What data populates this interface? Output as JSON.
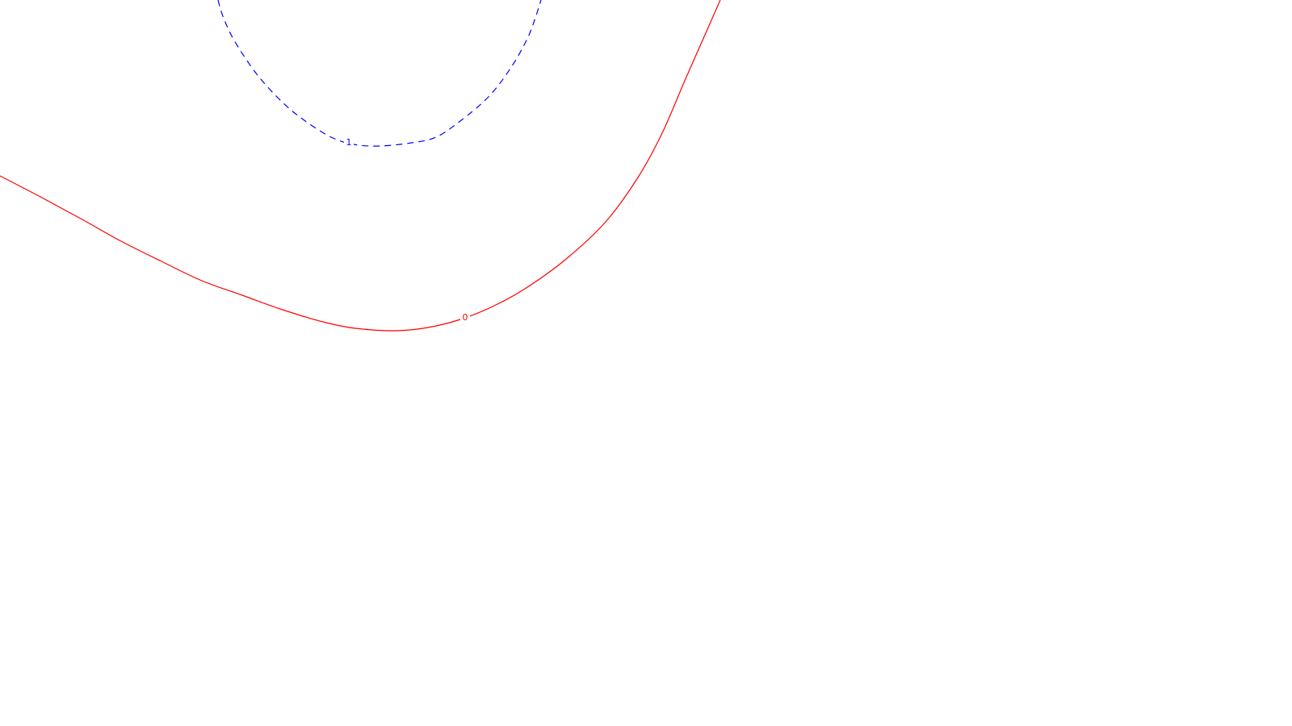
{
  "chart_data": {
    "type": "contour",
    "title": "",
    "xlabel": "",
    "ylabel": "",
    "grid": false,
    "legend": "none",
    "contours": [
      {
        "level_label": "1",
        "color": "#0000ff",
        "dash": "dashed",
        "label_point": [
          432,
          177
        ],
        "points": [
          [
            270,
            0
          ],
          [
            276,
            20
          ],
          [
            290,
            50
          ],
          [
            318,
            92
          ],
          [
            350,
            127
          ],
          [
            378,
            150
          ],
          [
            410,
            170
          ],
          [
            438,
            179
          ],
          [
            470,
            181
          ],
          [
            510,
            177
          ],
          [
            540,
            170
          ],
          [
            570,
            150
          ],
          [
            605,
            120
          ],
          [
            632,
            85
          ],
          [
            652,
            50
          ],
          [
            662,
            25
          ],
          [
            670,
            0
          ]
        ]
      },
      {
        "level_label": "0",
        "color": "#ff0000",
        "dash": "solid",
        "label_point": [
          576,
          394
        ],
        "points": [
          [
            0,
            218
          ],
          [
            50,
            244
          ],
          [
            100,
            271
          ],
          [
            150,
            299
          ],
          [
            200,
            324
          ],
          [
            250,
            348
          ],
          [
            300,
            366
          ],
          [
            350,
            384
          ],
          [
            400,
            399
          ],
          [
            440,
            407
          ],
          [
            490,
            410
          ],
          [
            530,
            406
          ],
          [
            570,
            396
          ],
          [
            610,
            380
          ],
          [
            650,
            358
          ],
          [
            700,
            322
          ],
          [
            750,
            275
          ],
          [
            790,
            220
          ],
          [
            820,
            165
          ],
          [
            848,
            100
          ],
          [
            870,
            50
          ],
          [
            892,
            0
          ]
        ]
      }
    ]
  }
}
